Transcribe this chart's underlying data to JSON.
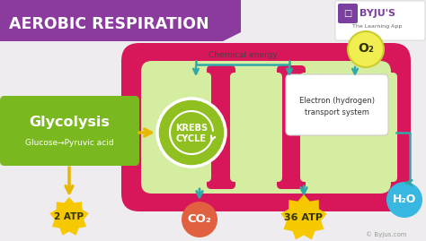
{
  "bg_color": "#eeecee",
  "title": "AEROBIC RESPIRATION",
  "title_bg": "#8b3a9e",
  "title_color": "#ffffff",
  "mito_outer_color": "#d8175a",
  "mito_inner_color": "#d4eda0",
  "glycolysis_bg": "#7ab820",
  "glycolysis_text1": "Glycolysis",
  "glycolysis_text2": "Glucose→Pyruvic acid",
  "krebs_bg": "#90c020",
  "krebs_text1": "KREBS",
  "krebs_text2": "CYCLE",
  "electron_text": "Electron (hydrogen)\ntransport system",
  "chemical_energy_text": "Chemical energy",
  "atp2_text": "2 ATP",
  "atp36_text": "36 ATP",
  "co2_text": "CO₂",
  "o2_text": "O₂",
  "h2o_text": "H₂O",
  "yellow_arrow": "#e8b800",
  "teal_arrow": "#2ea8a8",
  "byju_text": "© Byjus.com",
  "atp_blob_color": "#f5c800",
  "co2_blob_color": "#e06040",
  "o2_blob_color": "#f0ee50",
  "h2o_blob_color": "#38b8e0",
  "byju_purple": "#7b3fa0"
}
